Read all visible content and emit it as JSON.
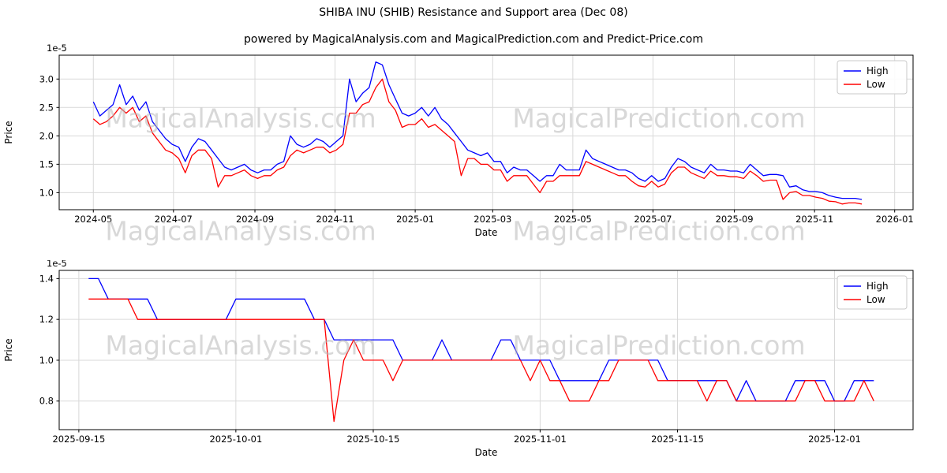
{
  "title": "SHIBA INU (SHIB) Resistance and Support area (Dec 08)",
  "subtitle": "powered by MagicalAnalysis.com and MagicalPrediction.com and Predict-Price.com",
  "watermark": {
    "left": "MagicalAnalysis.com",
    "right": "MagicalPrediction.com"
  },
  "colors": {
    "high": "#0000ff",
    "low": "#ff0000",
    "grid": "#d9d9d9",
    "spine": "#000000",
    "watermark": "#b9b9b9"
  },
  "chart_data": [
    {
      "type": "line",
      "xlabel": "Date",
      "ylabel": "Price",
      "offset_text": "1e-5",
      "grid": true,
      "legend_loc": "upper right",
      "xlim": [
        "2024-04-05",
        "2026-01-15"
      ],
      "ylim": [
        0.7,
        3.42
      ],
      "yticks": [
        {
          "v": 1.0,
          "label": "1.0"
        },
        {
          "v": 1.5,
          "label": "1.5"
        },
        {
          "v": 2.0,
          "label": "2.0"
        },
        {
          "v": 2.5,
          "label": "2.5"
        },
        {
          "v": 3.0,
          "label": "3.0"
        }
      ],
      "xticks": [
        {
          "d": "2024-05-01",
          "label": "2024-05"
        },
        {
          "d": "2024-07-01",
          "label": "2024-07"
        },
        {
          "d": "2024-09-01",
          "label": "2024-09"
        },
        {
          "d": "2024-11-01",
          "label": "2024-11"
        },
        {
          "d": "2025-01-01",
          "label": "2025-01"
        },
        {
          "d": "2025-03-01",
          "label": "2025-03"
        },
        {
          "d": "2025-05-01",
          "label": "2025-05"
        },
        {
          "d": "2025-07-01",
          "label": "2025-07"
        },
        {
          "d": "2025-09-01",
          "label": "2025-09"
        },
        {
          "d": "2025-11-01",
          "label": "2025-11"
        },
        {
          "d": "2026-01-01",
          "label": "2026-01"
        }
      ],
      "x": {
        "start": "2024-05-01",
        "step_days": 5
      },
      "series": [
        {
          "name": "High",
          "color": "#0000ff",
          "values": [
            2.6,
            2.35,
            2.45,
            2.55,
            2.9,
            2.55,
            2.7,
            2.45,
            2.6,
            2.25,
            2.1,
            1.95,
            1.85,
            1.8,
            1.55,
            1.8,
            1.95,
            1.9,
            1.75,
            1.6,
            1.45,
            1.4,
            1.45,
            1.5,
            1.4,
            1.35,
            1.4,
            1.4,
            1.5,
            1.55,
            2.0,
            1.85,
            1.8,
            1.85,
            1.95,
            1.9,
            1.8,
            1.9,
            2.0,
            3.0,
            2.6,
            2.75,
            2.85,
            3.3,
            3.25,
            2.9,
            2.65,
            2.4,
            2.35,
            2.4,
            2.5,
            2.35,
            2.5,
            2.3,
            2.2,
            2.05,
            1.9,
            1.75,
            1.7,
            1.65,
            1.7,
            1.55,
            1.55,
            1.35,
            1.45,
            1.4,
            1.4,
            1.3,
            1.2,
            1.3,
            1.3,
            1.5,
            1.4,
            1.4,
            1.4,
            1.75,
            1.6,
            1.55,
            1.5,
            1.45,
            1.4,
            1.4,
            1.35,
            1.25,
            1.2,
            1.3,
            1.2,
            1.25,
            1.45,
            1.6,
            1.55,
            1.45,
            1.4,
            1.35,
            1.5,
            1.4,
            1.4,
            1.38,
            1.38,
            1.35,
            1.5,
            1.4,
            1.3,
            1.32,
            1.32,
            1.3,
            1.1,
            1.12,
            1.05,
            1.02,
            1.02,
            1.0,
            0.95,
            0.92,
            0.9,
            0.9,
            0.9,
            0.88
          ]
        },
        {
          "name": "Low",
          "color": "#ff0000",
          "values": [
            2.3,
            2.2,
            2.25,
            2.35,
            2.5,
            2.4,
            2.5,
            2.25,
            2.35,
            2.05,
            1.9,
            1.75,
            1.7,
            1.6,
            1.35,
            1.65,
            1.75,
            1.75,
            1.6,
            1.1,
            1.3,
            1.3,
            1.35,
            1.4,
            1.3,
            1.25,
            1.3,
            1.3,
            1.4,
            1.45,
            1.65,
            1.75,
            1.7,
            1.75,
            1.8,
            1.8,
            1.7,
            1.75,
            1.85,
            2.4,
            2.4,
            2.55,
            2.6,
            2.85,
            3.0,
            2.6,
            2.45,
            2.15,
            2.2,
            2.2,
            2.3,
            2.15,
            2.2,
            2.1,
            2.0,
            1.9,
            1.3,
            1.6,
            1.6,
            1.5,
            1.5,
            1.4,
            1.4,
            1.2,
            1.3,
            1.3,
            1.3,
            1.15,
            1.0,
            1.2,
            1.2,
            1.3,
            1.3,
            1.3,
            1.3,
            1.55,
            1.5,
            1.45,
            1.4,
            1.35,
            1.3,
            1.3,
            1.2,
            1.12,
            1.1,
            1.2,
            1.1,
            1.15,
            1.35,
            1.45,
            1.45,
            1.35,
            1.3,
            1.25,
            1.38,
            1.3,
            1.3,
            1.28,
            1.28,
            1.25,
            1.38,
            1.3,
            1.2,
            1.22,
            1.22,
            0.88,
            1.0,
            1.02,
            0.95,
            0.95,
            0.92,
            0.9,
            0.85,
            0.84,
            0.8,
            0.82,
            0.82,
            0.8
          ]
        }
      ]
    },
    {
      "type": "line",
      "xlabel": "Date",
      "ylabel": "Price",
      "offset_text": "1e-5",
      "grid": true,
      "legend_loc": "upper right",
      "xlim": [
        "2025-09-13",
        "2025-12-09"
      ],
      "ylim": [
        0.66,
        1.44
      ],
      "yticks": [
        {
          "v": 0.8,
          "label": "0.8"
        },
        {
          "v": 1.0,
          "label": "1.0"
        },
        {
          "v": 1.2,
          "label": "1.2"
        },
        {
          "v": 1.4,
          "label": "1.4"
        }
      ],
      "xticks": [
        {
          "d": "2025-09-15",
          "label": "2025-09-15"
        },
        {
          "d": "2025-10-01",
          "label": "2025-10-01"
        },
        {
          "d": "2025-10-15",
          "label": "2025-10-15"
        },
        {
          "d": "2025-11-01",
          "label": "2025-11-01"
        },
        {
          "d": "2025-11-15",
          "label": "2025-11-15"
        },
        {
          "d": "2025-12-01",
          "label": "2025-12-01"
        }
      ],
      "x": {
        "start": "2025-09-16",
        "step_days": 1
      },
      "series": [
        {
          "name": "High",
          "color": "#0000ff",
          "values": [
            1.4,
            1.4,
            1.3,
            1.3,
            1.3,
            1.3,
            1.3,
            1.2,
            1.2,
            1.2,
            1.2,
            1.2,
            1.2,
            1.2,
            1.2,
            1.3,
            1.3,
            1.3,
            1.3,
            1.3,
            1.3,
            1.3,
            1.3,
            1.2,
            1.2,
            1.1,
            1.1,
            1.1,
            1.1,
            1.1,
            1.1,
            1.1,
            1.0,
            1.0,
            1.0,
            1.0,
            1.1,
            1.0,
            1.0,
            1.0,
            1.0,
            1.0,
            1.1,
            1.1,
            1.0,
            1.0,
            1.0,
            1.0,
            0.9,
            0.9,
            0.9,
            0.9,
            0.9,
            1.0,
            1.0,
            1.0,
            1.0,
            1.0,
            1.0,
            0.9,
            0.9,
            0.9,
            0.9,
            0.9,
            0.9,
            0.9,
            0.8,
            0.9,
            0.8,
            0.8,
            0.8,
            0.8,
            0.9,
            0.9,
            0.9,
            0.9,
            0.8,
            0.8,
            0.9,
            0.9,
            0.9
          ]
        },
        {
          "name": "Low",
          "color": "#ff0000",
          "values": [
            1.3,
            1.3,
            1.3,
            1.3,
            1.3,
            1.2,
            1.2,
            1.2,
            1.2,
            1.2,
            1.2,
            1.2,
            1.2,
            1.2,
            1.2,
            1.2,
            1.2,
            1.2,
            1.2,
            1.2,
            1.2,
            1.2,
            1.2,
            1.2,
            1.2,
            0.7,
            1.0,
            1.1,
            1.0,
            1.0,
            1.0,
            0.9,
            1.0,
            1.0,
            1.0,
            1.0,
            1.0,
            1.0,
            1.0,
            1.0,
            1.0,
            1.0,
            1.0,
            1.0,
            1.0,
            0.9,
            1.0,
            0.9,
            0.9,
            0.8,
            0.8,
            0.8,
            0.9,
            0.9,
            1.0,
            1.0,
            1.0,
            1.0,
            0.9,
            0.9,
            0.9,
            0.9,
            0.9,
            0.8,
            0.9,
            0.9,
            0.8,
            0.8,
            0.8,
            0.8,
            0.8,
            0.8,
            0.8,
            0.9,
            0.9,
            0.8,
            0.8,
            0.8,
            0.8,
            0.9,
            0.8
          ]
        }
      ]
    }
  ]
}
